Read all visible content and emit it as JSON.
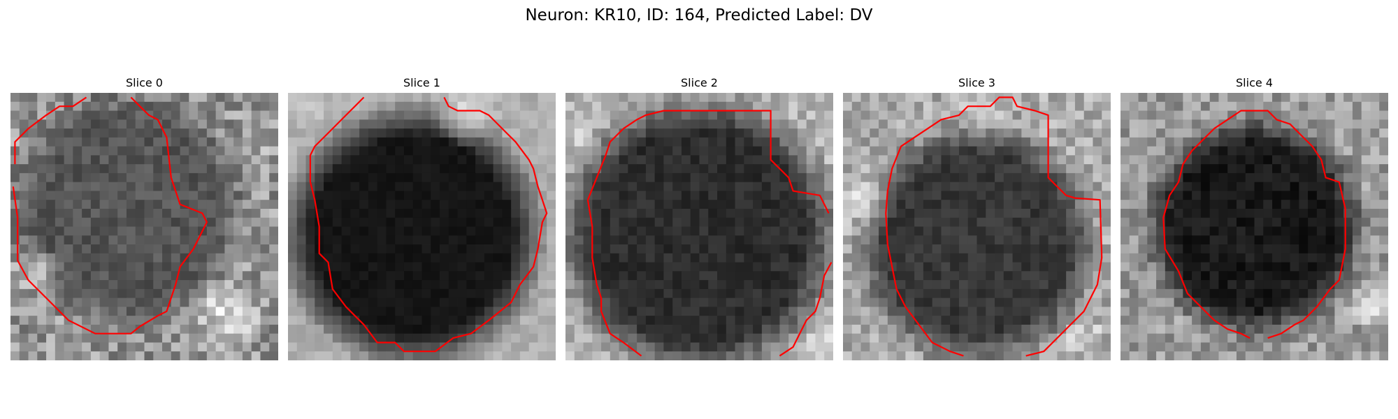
{
  "figure": {
    "title": "Neuron: KR10, ID: 164, Predicted Label: DV"
  },
  "colors": {
    "contour": "#ff0000",
    "colormap": "grayscale"
  },
  "slices": [
    {
      "label": "Slice 0"
    },
    {
      "label": "Slice 1"
    },
    {
      "label": "Slice 2"
    },
    {
      "label": "Slice 3"
    },
    {
      "label": "Slice 4"
    }
  ]
}
